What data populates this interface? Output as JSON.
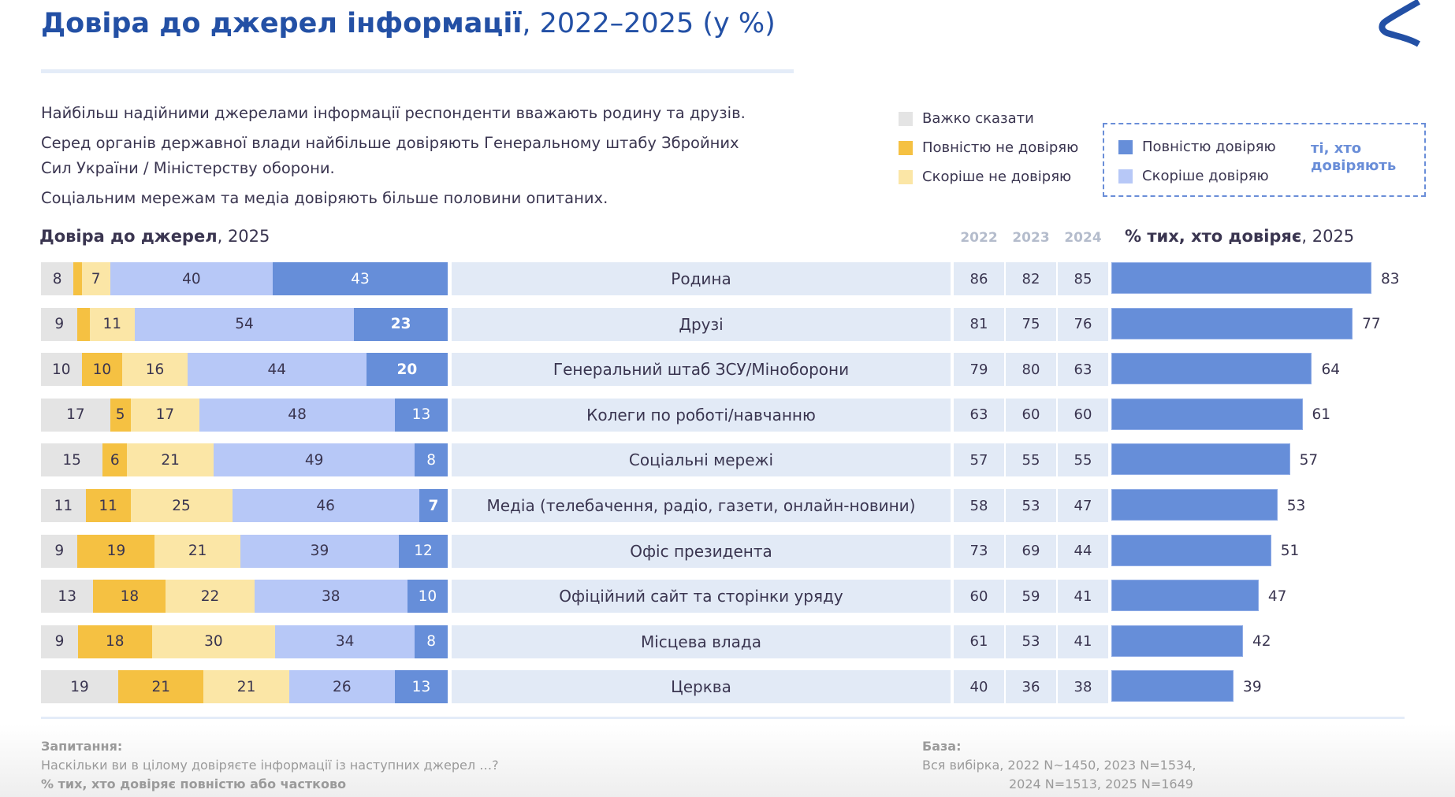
{
  "title": {
    "bold": "Довіра до джерел інформації",
    "rest": ", 2022–2025 (у %)"
  },
  "logo": {
    "icon": "brand-chevron-logo",
    "color": "#2350a5"
  },
  "intro": [
    "Найбільш надійними джерелами інформації респонденти вважають родину та друзів.",
    "Серед органів державної влади найбільше довіряють Генеральному штабу Збройних Сил України / Міністерству оборони.",
    "Соціальним мережам та медіа довіряють більше половини опитаних."
  ],
  "legend": {
    "dont_know": "Важко сказати",
    "fully_distrust": "Повністю не довіряю",
    "rather_distrust": "Скоріше не довіряю",
    "fully_trust": "Повністю довіряю",
    "rather_trust": "Скоріше довіряю",
    "trusting_tag_line1": "ті, хто",
    "trusting_tag_line2": "довіряють"
  },
  "colors": {
    "dont_know": "#e4e4e4",
    "fully_distrust": "#f5c142",
    "rather_distrust": "#fbe6a6",
    "rather_trust": "#b7c8f7",
    "fully_trust": "#668ed9",
    "accent": "#2350a5"
  },
  "headers": {
    "left_bold": "Довіра до джерел",
    "left_rest": ", 2025",
    "years": [
      "2022",
      "2023",
      "2024"
    ],
    "right_bold": "% тих, хто довіряє",
    "right_rest": ", 2025"
  },
  "chart_data": {
    "type": "bar",
    "title": "Довіра до джерел інформації, 2022–2025 (у %)",
    "categories": [
      "Родина",
      "Друзі",
      "Генеральний штаб ЗСУ/Міноборони",
      "Колеги по роботі/навчанню",
      "Соціальні мережі",
      "Медіа (телебачення, радіо, газети, онлайн-новини)",
      "Офіс президента",
      "Офіційний сайт та сторінки уряду",
      "Місцева влада",
      "Церква"
    ],
    "stacked_2025": {
      "series": [
        {
          "name": "Важко сказати",
          "values": [
            8,
            9,
            10,
            17,
            15,
            11,
            9,
            13,
            9,
            19
          ]
        },
        {
          "name": "Повністю не довіряю",
          "values": [
            2,
            3,
            10,
            5,
            6,
            11,
            19,
            18,
            18,
            21
          ],
          "labels": [
            "",
            "",
            "10",
            "5",
            "6",
            "11",
            "19",
            "18",
            "18",
            "21"
          ]
        },
        {
          "name": "Скоріше не довіряю",
          "values": [
            7,
            11,
            16,
            17,
            21,
            25,
            21,
            22,
            30,
            21
          ]
        },
        {
          "name": "Скоріше довіряю",
          "values": [
            40,
            54,
            44,
            48,
            49,
            46,
            39,
            38,
            34,
            26
          ]
        },
        {
          "name": "Повністю довіряю",
          "values": [
            43,
            23,
            20,
            13,
            8,
            7,
            12,
            10,
            8,
            13
          ],
          "bold_label": [
            false,
            true,
            true,
            false,
            false,
            true,
            false,
            false,
            false,
            false
          ]
        }
      ]
    },
    "trust_by_year": {
      "years": [
        "2022",
        "2023",
        "2024"
      ],
      "values": [
        [
          86,
          82,
          85
        ],
        [
          81,
          75,
          76
        ],
        [
          79,
          80,
          63
        ],
        [
          63,
          60,
          60
        ],
        [
          57,
          55,
          55
        ],
        [
          58,
          53,
          47
        ],
        [
          73,
          69,
          44
        ],
        [
          60,
          59,
          41
        ],
        [
          61,
          53,
          41
        ],
        [
          40,
          36,
          38
        ]
      ]
    },
    "trust_2025": {
      "name": "% тих, хто довіряє, 2025",
      "values": [
        83,
        77,
        64,
        61,
        57,
        53,
        51,
        47,
        42,
        39
      ]
    },
    "xlim": [
      0,
      100
    ],
    "legend_position": "top-right"
  },
  "footer": {
    "question_label": "Запитання:",
    "question_text": "Наскільки ви в цілому довіряєте інформації із наступних джерел …?",
    "question_note": "% тих, хто довіряє повністю або частково",
    "base_label": "База:",
    "base_line1": "Вся вибірка, 2022  N~1450, 2023  N=1534,",
    "base_line2": "2024 N=1513,  2025  N=1649"
  }
}
